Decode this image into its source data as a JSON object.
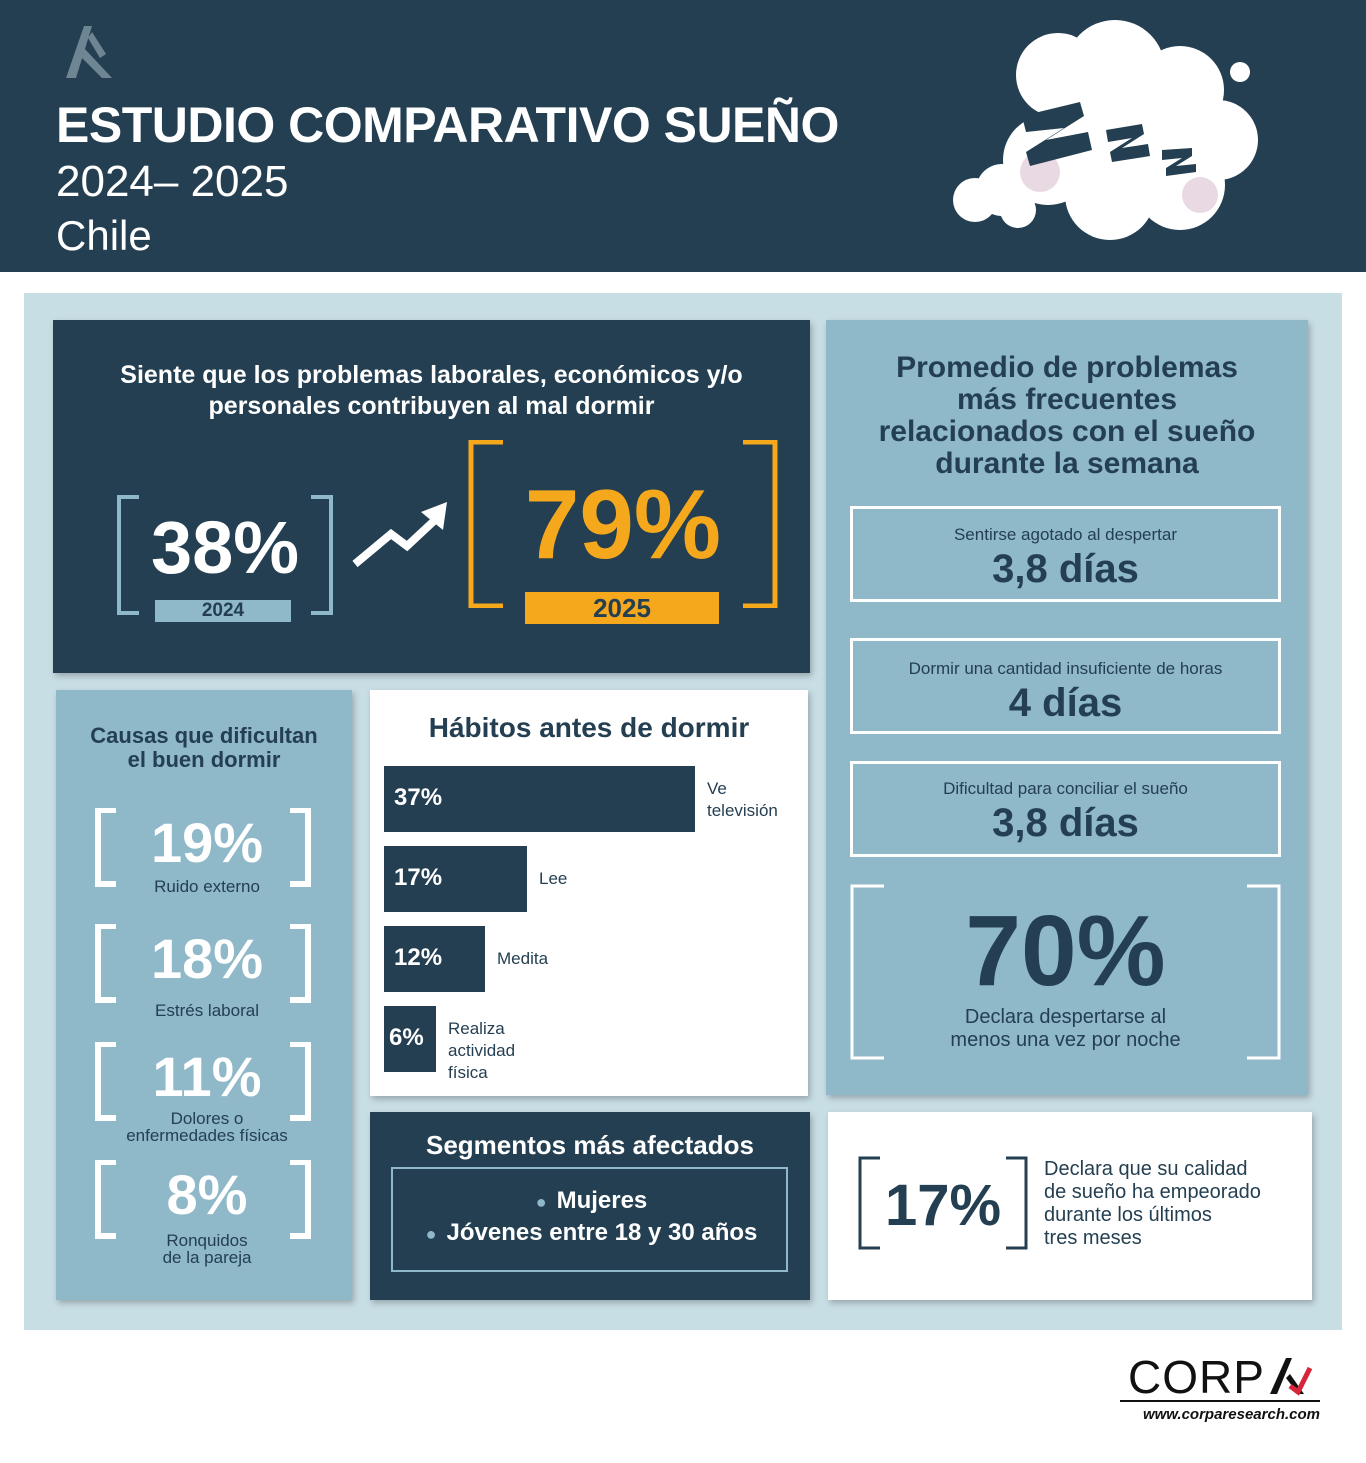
{
  "header": {
    "title": "ESTUDIO COMPARATIVO SUEÑO",
    "years": "2024– 2025",
    "country": "Chile",
    "cloud_text": "ZZZ"
  },
  "problems_card": {
    "question_line1": "Siente que los problemas laborales, económicos y/o",
    "question_line2": "personales contribuyen al mal dormir",
    "value_2024": "38%",
    "label_2024": "2024",
    "value_2025": "79%",
    "label_2025": "2025"
  },
  "causes_card": {
    "title_line1": "Causas que dificultan",
    "title_line2": "el buen dormir",
    "items": [
      {
        "pct": "19%",
        "label_line1": "Ruido externo",
        "label_line2": ""
      },
      {
        "pct": "18%",
        "label_line1": "Estrés laboral",
        "label_line2": ""
      },
      {
        "pct": "11%",
        "label_line1": "Dolores o",
        "label_line2": "enfermedades físicas"
      },
      {
        "pct": "8%",
        "label_line1": "Ronquidos",
        "label_line2": "de la pareja"
      }
    ]
  },
  "habits_card": {
    "title": "Hábitos antes de dormir",
    "items": [
      {
        "pct": "37%",
        "value": 37,
        "label_line1": "Ve",
        "label_line2": "televisión"
      },
      {
        "pct": "17%",
        "value": 17,
        "label_line1": "Lee",
        "label_line2": ""
      },
      {
        "pct": "12%",
        "value": 12,
        "label_line1": "Medita",
        "label_line2": ""
      },
      {
        "pct": "6%",
        "value": 6,
        "label_line1": "Realiza",
        "label_line2": "actividad física"
      }
    ]
  },
  "segments_card": {
    "title": "Segmentos más afectados",
    "items": [
      "Mujeres",
      "Jóvenes entre 18 y 30 años"
    ]
  },
  "weekly_card": {
    "title_line1": "Promedio de problemas",
    "title_line2": "más frecuentes",
    "title_line3": "relacionados con el sueño",
    "title_line4": "durante la semana",
    "stats": [
      {
        "label": "Sentirse agotado al despertar",
        "value": "3,8 días"
      },
      {
        "label": "Dormir una cantidad insuficiente de horas",
        "value": "4 días"
      },
      {
        "label": "Dificultad para conciliar el sueño",
        "value": "3,8 días"
      }
    ],
    "wake_pct": "70%",
    "wake_label_line1": "Declara despertarse al",
    "wake_label_line2": "menos una vez por noche"
  },
  "quality_card": {
    "pct": "17%",
    "label_line1": "Declara que su calidad",
    "label_line2": "de sueño ha empeorado",
    "label_line3": "durante los últimos",
    "label_line4": "tres meses"
  },
  "footer": {
    "brand": "CORP",
    "url": "www.corparesearch.com"
  },
  "colors": {
    "navy": "#243f51",
    "light_blue": "#8fb8c8",
    "pale_blue": "#c8dee5",
    "orange": "#f5a81c",
    "red_accent": "#d6253a"
  }
}
